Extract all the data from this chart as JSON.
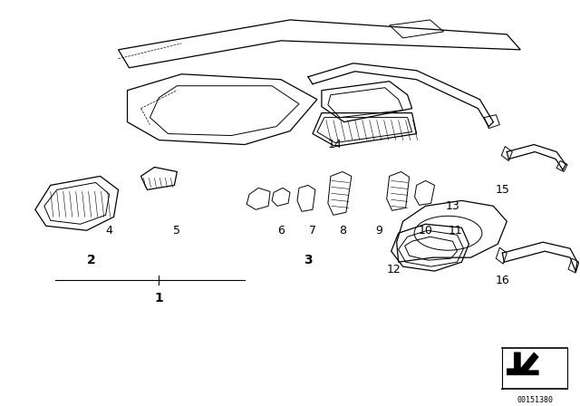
{
  "bg_color": "#ffffff",
  "line_color": "#000000",
  "label_color": "#000000",
  "catalog_number": "00151380",
  "figsize": [
    6.4,
    4.48
  ],
  "dpi": 100,
  "xlim": [
    0,
    640
  ],
  "ylim": [
    0,
    448
  ],
  "labels": {
    "1": [
      175,
      330,
      true
    ],
    "2": [
      100,
      288,
      true
    ],
    "3": [
      340,
      288,
      true
    ],
    "4": [
      120,
      255,
      false
    ],
    "5": [
      195,
      255,
      false
    ],
    "6": [
      310,
      255,
      false
    ],
    "7": [
      345,
      255,
      false
    ],
    "8": [
      378,
      255,
      false
    ],
    "9": [
      418,
      255,
      false
    ],
    "10": [
      470,
      255,
      false
    ],
    "11": [
      503,
      255,
      false
    ],
    "12": [
      435,
      298,
      false
    ],
    "13": [
      500,
      228,
      false
    ],
    "14": [
      370,
      160,
      false
    ],
    "15": [
      555,
      210,
      false
    ],
    "16": [
      555,
      310,
      false
    ]
  },
  "leader_line": [
    [
      60,
      310
    ],
    [
      270,
      310
    ]
  ],
  "leader_tick": [
    175,
    305,
    175,
    315
  ]
}
